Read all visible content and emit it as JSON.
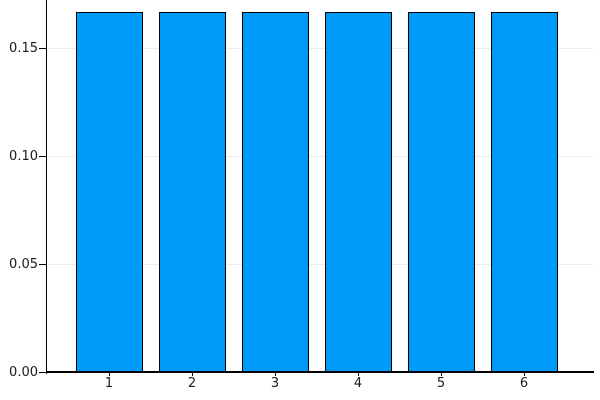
{
  "chart_data": {
    "type": "bar",
    "title": "",
    "xlabel": "",
    "ylabel": "",
    "categories": [
      "1",
      "2",
      "3",
      "4",
      "5",
      "6"
    ],
    "values": [
      0.1667,
      0.1667,
      0.1667,
      0.1667,
      0.1667,
      0.1667
    ],
    "ylim": [
      0,
      0.1722
    ],
    "yticks": [
      {
        "value": 0.0,
        "label": "0.00"
      },
      {
        "value": 0.05,
        "label": "0.05"
      },
      {
        "value": 0.1,
        "label": "0.10"
      },
      {
        "value": 0.15,
        "label": "0.15"
      }
    ],
    "grid": true,
    "legend": "none",
    "colors": {
      "bar_fill": "#009af9",
      "bar_border": "#000000",
      "axis": "#000000",
      "grid": "#ececec",
      "tick_label": "#1a1a1a",
      "background": "#ffffff"
    }
  }
}
